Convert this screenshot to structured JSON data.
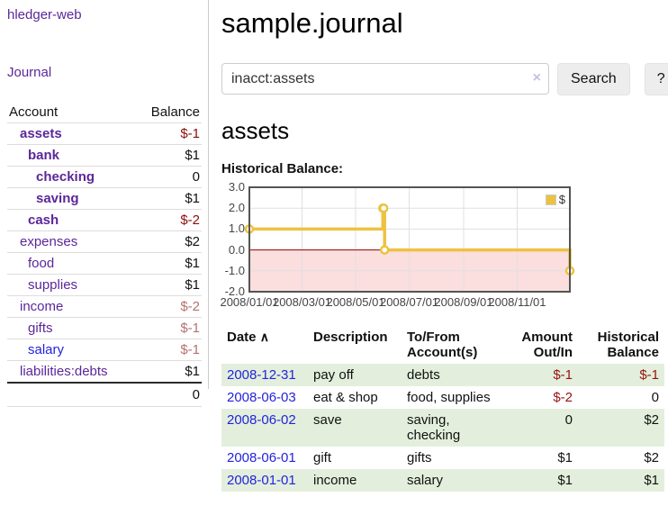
{
  "app": {
    "brand": "hledger-web",
    "nav": {
      "journal": "Journal"
    }
  },
  "colors": {
    "link_purple": "#5b2799",
    "link_blue": "#2323dd",
    "negative_dark": "#8b1008",
    "negative_light": "#b5716f",
    "negative_table": "#971210",
    "row_stripe_green": "#e3efdc",
    "chart_series_gold": "#EDC240"
  },
  "sidebar": {
    "headers": {
      "account": "Account",
      "balance": "Balance"
    },
    "accounts": [
      {
        "name": "assets",
        "balance": "$-1",
        "indent": 1,
        "bold": true,
        "neg": "dark"
      },
      {
        "name": "bank",
        "balance": "$1",
        "indent": 2,
        "bold": true
      },
      {
        "name": "checking",
        "balance": "0",
        "indent": 3,
        "bold": true
      },
      {
        "name": "saving",
        "balance": "$1",
        "indent": 3,
        "bold": true
      },
      {
        "name": "cash",
        "balance": "$-2",
        "indent": 2,
        "bold": true,
        "neg": "dark"
      },
      {
        "name": "expenses",
        "balance": "$2",
        "indent": 1
      },
      {
        "name": "food",
        "balance": "$1",
        "indent": 2
      },
      {
        "name": "supplies",
        "balance": "$1",
        "indent": 2
      },
      {
        "name": "income",
        "balance": "$-2",
        "indent": 1,
        "neg": "light"
      },
      {
        "name": "gifts",
        "balance": "$-1",
        "indent": 2,
        "neg": "light"
      },
      {
        "name": "salary",
        "balance": "$-1",
        "indent": 2,
        "neg": "light",
        "link_color": "blue"
      },
      {
        "name": "liabilities:debts",
        "balance": "$1",
        "indent": 1
      }
    ],
    "total": "0"
  },
  "header": {
    "title": "sample.journal"
  },
  "search": {
    "value": "inacct:assets",
    "clear": "×",
    "submit": "Search",
    "help": "?"
  },
  "account_page": {
    "title": "assets",
    "chart_heading": "Historical Balance:"
  },
  "chart_data": {
    "type": "line",
    "title": "Historical Balance",
    "series": [
      {
        "name": "$",
        "color": "#EDC240",
        "step": true,
        "points": [
          [
            "2008-01-01",
            1
          ],
          [
            "2008-06-01",
            2
          ],
          [
            "2008-06-02",
            2
          ],
          [
            "2008-06-03",
            0
          ],
          [
            "2008-12-31",
            -1
          ]
        ]
      }
    ],
    "xrange": [
      "2008-01-01",
      "2008-12-31"
    ],
    "ylim": [
      -2,
      3
    ],
    "y_ticks": [
      {
        "v": 3,
        "label": "3.0"
      },
      {
        "v": 2,
        "label": "2.0"
      },
      {
        "v": 1,
        "label": "1.0"
      },
      {
        "v": 0,
        "label": "0.0"
      },
      {
        "v": -1,
        "label": "-1.0"
      },
      {
        "v": -2,
        "label": "-2.0"
      }
    ],
    "x_ticks": [
      {
        "date": "2008-01-01",
        "label": "2008/01/01"
      },
      {
        "date": "2008-03-01",
        "label": "2008/03/01"
      },
      {
        "date": "2008-05-01",
        "label": "2008/05/01"
      },
      {
        "date": "2008-07-01",
        "label": "2008/07/01"
      },
      {
        "date": "2008-09-01",
        "label": "2008/09/01"
      },
      {
        "date": "2008-11-01",
        "label": "2008/11/01"
      }
    ],
    "grid": true,
    "legend": {
      "position": "top-right",
      "label": "$"
    },
    "negative_region_color": "#fbdede",
    "zero_line_color": "#8b0000",
    "border_color": "#545454",
    "gridline_color": "#e0e0e0"
  },
  "register": {
    "headers": {
      "date": "Date",
      "sort_indicator": "∧",
      "description": "Description",
      "accounts": "To/From Account(s)",
      "amount": "Amount Out/In",
      "balance": "Historical Balance"
    },
    "rows": [
      {
        "date": "2008-12-31",
        "description": "pay off",
        "accounts": "debts",
        "amount": "$-1",
        "amount_neg": true,
        "balance": "$-1",
        "balance_neg": true
      },
      {
        "date": "2008-06-03",
        "description": "eat & shop",
        "accounts": "food, supplies",
        "amount": "$-2",
        "amount_neg": true,
        "balance": "0",
        "balance_neg": false
      },
      {
        "date": "2008-06-02",
        "description": "save",
        "accounts": "saving, checking",
        "amount": "0",
        "amount_neg": false,
        "balance": "$2",
        "balance_neg": false
      },
      {
        "date": "2008-06-01",
        "description": "gift",
        "accounts": "gifts",
        "amount": "$1",
        "amount_neg": false,
        "balance": "$2",
        "balance_neg": false
      },
      {
        "date": "2008-01-01",
        "description": "income",
        "accounts": "salary",
        "amount": "$1",
        "amount_neg": false,
        "balance": "$1",
        "balance_neg": false
      }
    ]
  }
}
